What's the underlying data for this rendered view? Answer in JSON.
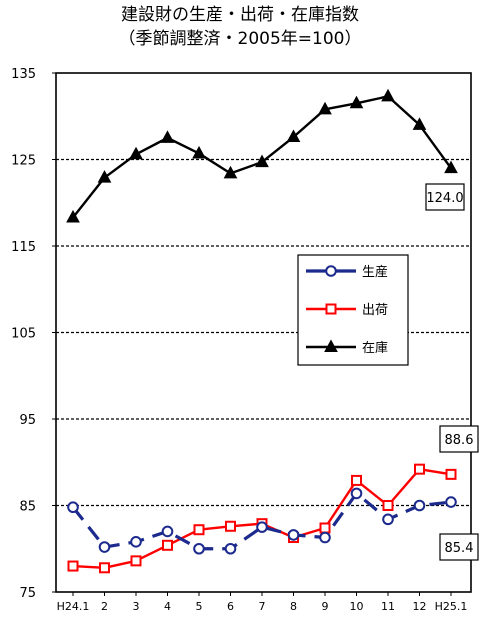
{
  "chart_data": {
    "type": "line",
    "title": "建設財の生産・出荷・在庫指数",
    "subtitle": "（季節調整済・2005年=100）",
    "xlabel": "",
    "ylabel": "",
    "categories": [
      "H24.1",
      "2",
      "3",
      "4",
      "5",
      "6",
      "7",
      "8",
      "9",
      "10",
      "11",
      "12",
      "H25.1"
    ],
    "y_ticks": [
      75,
      85,
      95,
      105,
      115,
      125,
      135
    ],
    "ylim": [
      75,
      135
    ],
    "grid": "horizontal-dashed",
    "legend_position": "center-right",
    "series": [
      {
        "name": "生産",
        "color": "#1b2a8c",
        "marker": "circle-open",
        "line_style": "dashed",
        "values": [
          84.8,
          80.2,
          80.8,
          82.0,
          80.0,
          80.0,
          82.5,
          81.6,
          81.3,
          86.4,
          83.4,
          85.0,
          85.4
        ],
        "end_label": "85.4"
      },
      {
        "name": "出荷",
        "color": "#ff0000",
        "marker": "square-open",
        "line_style": "solid",
        "values": [
          78.0,
          77.8,
          78.6,
          80.4,
          82.2,
          82.6,
          82.9,
          81.3,
          82.4,
          87.9,
          85.0,
          89.2,
          88.6
        ],
        "end_label": "88.6"
      },
      {
        "name": "在庫",
        "color": "#000000",
        "marker": "triangle-filled",
        "line_style": "solid",
        "values": [
          118.3,
          122.9,
          125.6,
          127.5,
          125.7,
          123.4,
          124.7,
          127.6,
          130.8,
          131.5,
          132.3,
          129.0,
          124.0
        ],
        "end_label": "124.0"
      }
    ]
  }
}
